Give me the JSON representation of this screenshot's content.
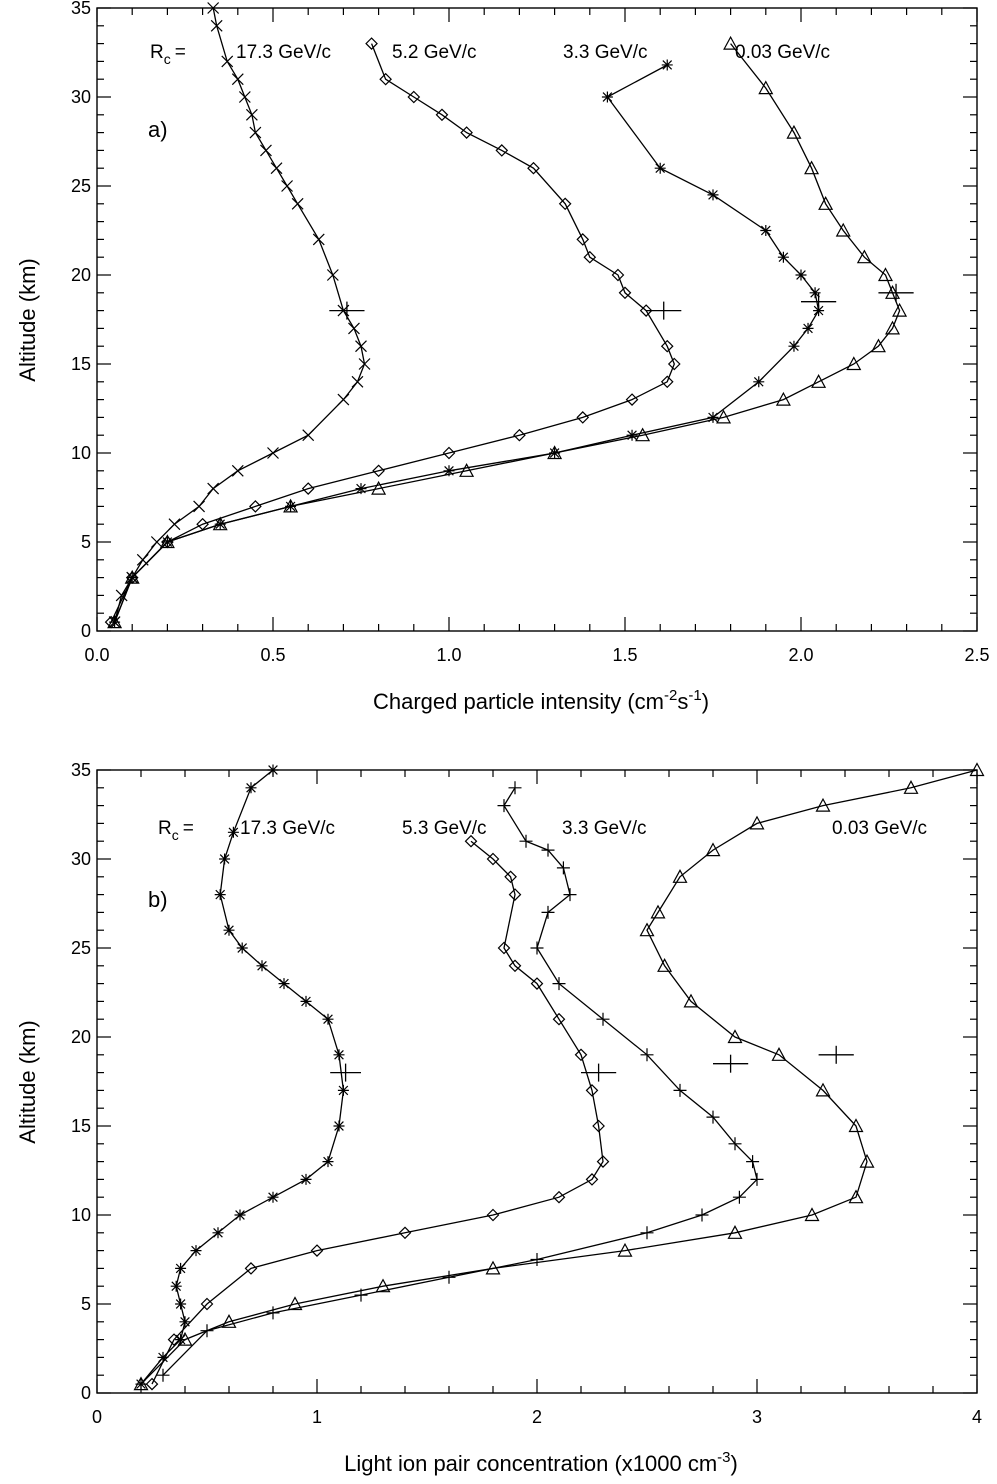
{
  "chart_data": [
    {
      "type": "line",
      "panel_tag": "a)",
      "xlabel_main": "Charged particle intensity (cm",
      "xlabel_exp1": "-2",
      "xlabel_mid": "s",
      "xlabel_exp2": "-1",
      "xlabel_end": ")",
      "ylabel": "Altitude (km)",
      "xlim": [
        0,
        2.5
      ],
      "ylim": [
        0,
        35
      ],
      "xticks": [
        "0.0",
        "0.5",
        "1.0",
        "1.5",
        "2.0",
        "2.5"
      ],
      "yticks": [
        "0",
        "5",
        "10",
        "15",
        "20",
        "25",
        "30",
        "35"
      ],
      "rc_prefix": "R",
      "rc_sub": "c",
      "rc_eq": "=",
      "series": [
        {
          "name": "17.3 GeV/c",
          "marker": "x",
          "x": [
            0.05,
            0.07,
            0.1,
            0.13,
            0.17,
            0.22,
            0.29,
            0.33,
            0.4,
            0.5,
            0.6,
            0.7,
            0.74,
            0.76,
            0.75,
            0.73,
            0.7,
            0.67,
            0.63,
            0.57,
            0.54,
            0.51,
            0.48,
            0.45,
            0.44,
            0.42,
            0.4,
            0.37,
            0.34,
            0.33
          ],
          "y": [
            0.5,
            2,
            3,
            4,
            5,
            6,
            7,
            8,
            9,
            10,
            11,
            13,
            14,
            15,
            16,
            17,
            18,
            20,
            22,
            24,
            25,
            26,
            27,
            28,
            29,
            30,
            31,
            32,
            34,
            35
          ],
          "err_y": 18,
          "err_x": [
            0.66,
            0.76
          ]
        },
        {
          "name": "5.2 GeV/c",
          "marker": "diamond",
          "x": [
            0.04,
            0.1,
            0.2,
            0.3,
            0.45,
            0.6,
            0.8,
            1.0,
            1.2,
            1.38,
            1.52,
            1.62,
            1.64,
            1.62,
            1.56,
            1.5,
            1.48,
            1.4,
            1.38,
            1.33,
            1.24,
            1.15,
            1.05,
            0.98,
            0.9,
            0.82,
            0.78
          ],
          "y": [
            0.5,
            3,
            5,
            6,
            7,
            8,
            9,
            10,
            11,
            12,
            13,
            14,
            15,
            16,
            18,
            19,
            20,
            21,
            22,
            24,
            26,
            27,
            28,
            29,
            30,
            31,
            33
          ],
          "err_y": 18,
          "err_x": [
            1.56,
            1.66
          ]
        },
        {
          "name": "3.3 GeV/c",
          "marker": "asterisk",
          "x": [
            0.05,
            0.1,
            0.2,
            0.35,
            0.55,
            0.75,
            1.0,
            1.3,
            1.52,
            1.75,
            1.88,
            1.98,
            2.02,
            2.05,
            2.04,
            2.0,
            1.95,
            1.9,
            1.75,
            1.6,
            1.45,
            1.62
          ],
          "y": [
            0.5,
            3,
            5,
            6,
            7,
            8,
            9,
            10,
            11,
            12,
            14,
            16,
            17,
            18,
            19,
            20,
            21,
            22.5,
            24.5,
            26,
            30,
            31.8
          ],
          "err_y": 18.5,
          "err_x": [
            2.0,
            2.1
          ]
        },
        {
          "name": "0.03 GeV/c",
          "marker": "triangle",
          "x": [
            0.05,
            0.1,
            0.2,
            0.35,
            0.55,
            0.8,
            1.05,
            1.3,
            1.55,
            1.78,
            1.95,
            2.05,
            2.15,
            2.22,
            2.26,
            2.28,
            2.26,
            2.24,
            2.18,
            2.12,
            2.07,
            2.03,
            1.98,
            1.9,
            1.8
          ],
          "y": [
            0.5,
            3,
            5,
            6,
            7,
            8,
            9,
            10,
            11,
            12,
            13,
            14,
            15,
            16,
            17,
            18,
            19,
            20,
            21,
            22.5,
            24,
            26,
            28,
            30.5,
            33
          ],
          "err_y": 19,
          "err_x": [
            2.22,
            2.32
          ]
        }
      ]
    },
    {
      "type": "line",
      "panel_tag": "b)",
      "xlabel_main": "Light ion pair concentration (x1000 cm",
      "xlabel_exp1": "-3",
      "xlabel_end": ")",
      "ylabel": "Altitude (km)",
      "xlim": [
        0,
        4
      ],
      "ylim": [
        0,
        35
      ],
      "xticks": [
        "0",
        "1",
        "2",
        "3",
        "4"
      ],
      "yticks": [
        "0",
        "5",
        "10",
        "15",
        "20",
        "25",
        "30",
        "35"
      ],
      "rc_prefix": "R",
      "rc_sub": "c",
      "rc_eq": "=",
      "series": [
        {
          "name": "17.3 GeV/c",
          "marker": "asterisk",
          "x": [
            0.2,
            0.3,
            0.38,
            0.4,
            0.38,
            0.36,
            0.38,
            0.45,
            0.55,
            0.65,
            0.8,
            0.95,
            1.05,
            1.1,
            1.12,
            1.1,
            1.05,
            0.95,
            0.85,
            0.75,
            0.66,
            0.6,
            0.56,
            0.58,
            0.62,
            0.7,
            0.8
          ],
          "y": [
            0.5,
            2,
            3,
            4,
            5,
            6,
            7,
            8,
            9,
            10,
            11,
            12,
            13,
            15,
            17,
            19,
            21,
            22,
            23,
            24,
            25,
            26,
            28,
            30,
            31.5,
            34,
            35
          ],
          "err_y": 18,
          "err_x": [
            1.06,
            1.2
          ]
        },
        {
          "name": "5.3 GeV/c",
          "marker": "diamond",
          "x": [
            0.25,
            0.35,
            0.5,
            0.7,
            1.0,
            1.4,
            1.8,
            2.1,
            2.25,
            2.3,
            2.28,
            2.25,
            2.2,
            2.1,
            2.0,
            1.9,
            1.85,
            1.9,
            1.88,
            1.8,
            1.7
          ],
          "y": [
            0.5,
            3,
            5,
            7,
            8,
            9,
            10,
            11,
            12,
            13,
            15,
            17,
            19,
            21,
            23,
            24,
            25,
            28,
            29,
            30,
            31
          ],
          "err_y": 18,
          "err_x": [
            2.2,
            2.36
          ]
        },
        {
          "name": "3.3 GeV/c",
          "marker": "plus",
          "x": [
            0.3,
            0.5,
            0.8,
            1.2,
            1.6,
            2.0,
            2.5,
            2.75,
            2.92,
            3.0,
            2.98,
            2.9,
            2.8,
            2.65,
            2.5,
            2.3,
            2.1,
            2.0,
            2.05,
            2.15,
            2.12,
            2.05,
            1.95,
            1.85,
            1.9
          ],
          "y": [
            1,
            3.5,
            4.5,
            5.5,
            6.5,
            7.5,
            9,
            10,
            11,
            12,
            13,
            14,
            15.5,
            17,
            19,
            21,
            23,
            25,
            27,
            28,
            29.5,
            30.5,
            31,
            33,
            34
          ],
          "err_y": 18.5,
          "err_x": [
            2.8,
            2.96
          ]
        },
        {
          "name": "0.03 GeV/c",
          "marker": "triangle",
          "x": [
            0.2,
            0.4,
            0.6,
            0.9,
            1.3,
            1.8,
            2.4,
            2.9,
            3.25,
            3.45,
            3.5,
            3.45,
            3.3,
            3.1,
            2.9,
            2.7,
            2.58,
            2.5,
            2.55,
            2.65,
            2.8,
            3.0,
            3.3,
            3.7,
            4.0
          ],
          "y": [
            0.5,
            3,
            4,
            5,
            6,
            7,
            8,
            9,
            10,
            11,
            13,
            15,
            17,
            19,
            20,
            22,
            24,
            26,
            27,
            29,
            30.5,
            32,
            33,
            34,
            35
          ],
          "err_y": 19,
          "err_x": [
            3.28,
            3.44
          ]
        }
      ]
    }
  ]
}
